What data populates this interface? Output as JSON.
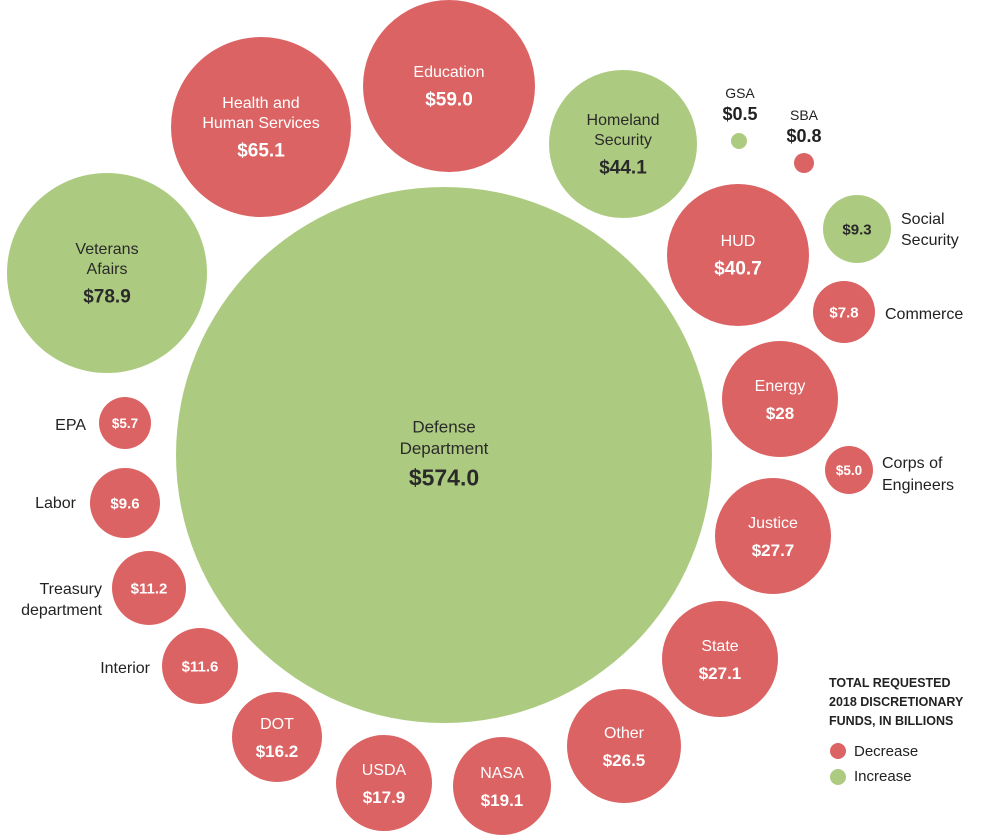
{
  "colors": {
    "decrease": "#dc6363",
    "increase": "#adcb80",
    "text_dark": "#222222",
    "text_on_circle": "#ffffff",
    "text_on_green": "#2a2a2a"
  },
  "legend": {
    "title_lines": [
      "TOTAL REQUESTED",
      "2018 DISCRETIONARY",
      "FUNDS, IN BILLIONS"
    ],
    "items": [
      {
        "label": "Decrease",
        "change": "decrease"
      },
      {
        "label": "Increase",
        "change": "increase"
      }
    ]
  },
  "chart_data": {
    "type": "bubble",
    "title": "TOTAL REQUESTED 2018 DISCRETIONARY FUNDS, IN BILLIONS",
    "unit": "billions of dollars",
    "series": [
      {
        "name": "Decrease",
        "color": "#dc6363"
      },
      {
        "name": "Increase",
        "color": "#adcb80"
      }
    ],
    "bubbles": [
      {
        "name": "Defense Department",
        "name_lines": [
          "Defense",
          "Department"
        ],
        "value": 574.0,
        "value_label": "$574.0",
        "change": "increase",
        "label_position": "inside"
      },
      {
        "name": "Veterans Afairs",
        "name_lines": [
          "Veterans",
          "Afairs"
        ],
        "value": 78.9,
        "value_label": "$78.9",
        "change": "increase",
        "label_position": "inside"
      },
      {
        "name": "Health and Human Services",
        "name_lines": [
          "Health and",
          "Human Services"
        ],
        "value": 65.1,
        "value_label": "$65.1",
        "change": "decrease",
        "label_position": "inside"
      },
      {
        "name": "Education",
        "name_lines": [
          "Education"
        ],
        "value": 59.0,
        "value_label": "$59.0",
        "change": "decrease",
        "label_position": "inside"
      },
      {
        "name": "Homeland Security",
        "name_lines": [
          "Homeland",
          "Security"
        ],
        "value": 44.1,
        "value_label": "$44.1",
        "change": "increase",
        "label_position": "inside"
      },
      {
        "name": "GSA",
        "name_lines": [
          "GSA"
        ],
        "value": 0.5,
        "value_label": "$0.5",
        "change": "increase",
        "label_position": "above"
      },
      {
        "name": "SBA",
        "name_lines": [
          "SBA"
        ],
        "value": 0.8,
        "value_label": "$0.8",
        "change": "decrease",
        "label_position": "above"
      },
      {
        "name": "HUD",
        "name_lines": [
          "HUD"
        ],
        "value": 40.7,
        "value_label": "$40.7",
        "change": "decrease",
        "label_position": "inside"
      },
      {
        "name": "Social Security",
        "name_lines": [
          "Social",
          "Security"
        ],
        "value": 9.3,
        "value_label": "$9.3",
        "change": "increase",
        "label_position": "right"
      },
      {
        "name": "Commerce",
        "name_lines": [
          "Commerce"
        ],
        "value": 7.8,
        "value_label": "$7.8",
        "change": "decrease",
        "label_position": "right"
      },
      {
        "name": "Energy",
        "name_lines": [
          "Energy"
        ],
        "value": 28,
        "value_label": "$28",
        "change": "decrease",
        "label_position": "inside"
      },
      {
        "name": "Corps of Engineers",
        "name_lines": [
          "Corps of",
          "Engineers"
        ],
        "value": 5.0,
        "value_label": "$5.0",
        "change": "decrease",
        "label_position": "right"
      },
      {
        "name": "Justice",
        "name_lines": [
          "Justice"
        ],
        "value": 27.7,
        "value_label": "$27.7",
        "change": "decrease",
        "label_position": "inside"
      },
      {
        "name": "State",
        "name_lines": [
          "State"
        ],
        "value": 27.1,
        "value_label": "$27.1",
        "change": "decrease",
        "label_position": "inside"
      },
      {
        "name": "Other",
        "name_lines": [
          "Other"
        ],
        "value": 26.5,
        "value_label": "$26.5",
        "change": "decrease",
        "label_position": "inside"
      },
      {
        "name": "NASA",
        "name_lines": [
          "NASA"
        ],
        "value": 19.1,
        "value_label": "$19.1",
        "change": "decrease",
        "label_position": "inside"
      },
      {
        "name": "USDA",
        "name_lines": [
          "USDA"
        ],
        "value": 17.9,
        "value_label": "$17.9",
        "change": "decrease",
        "label_position": "inside"
      },
      {
        "name": "DOT",
        "name_lines": [
          "DOT"
        ],
        "value": 16.2,
        "value_label": "$16.2",
        "change": "decrease",
        "label_position": "inside"
      },
      {
        "name": "Interior",
        "name_lines": [
          "Interior"
        ],
        "value": 11.6,
        "value_label": "$11.6",
        "change": "decrease",
        "label_position": "left"
      },
      {
        "name": "Treasury department",
        "name_lines": [
          "Treasury",
          "department"
        ],
        "value": 11.2,
        "value_label": "$11.2",
        "change": "decrease",
        "label_position": "left"
      },
      {
        "name": "Labor",
        "name_lines": [
          "Labor"
        ],
        "value": 9.6,
        "value_label": "$9.6",
        "change": "decrease",
        "label_position": "left"
      },
      {
        "name": "EPA",
        "name_lines": [
          "EPA"
        ],
        "value": 5.7,
        "value_label": "$5.7",
        "change": "decrease",
        "label_position": "left"
      }
    ]
  }
}
